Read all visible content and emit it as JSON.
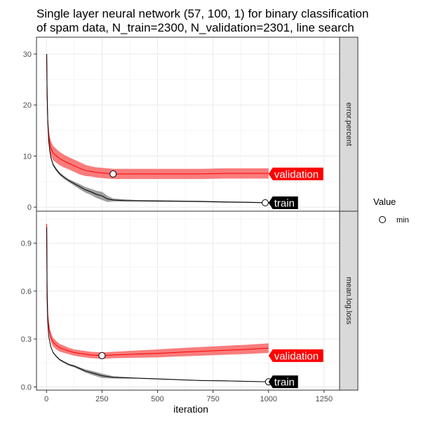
{
  "chart_data": {
    "type": "line",
    "title_lines": [
      "Single layer neural network (57, 100, 1) for binary classification",
      "of spam data, N_train=2300, N_validation=2301, line search"
    ],
    "xlabel": "iteration",
    "xlim": [
      -45,
      1320
    ],
    "x_ticks": [
      0,
      250,
      500,
      750,
      1000,
      1250
    ],
    "legend": {
      "title": "Value",
      "entries": [
        {
          "label": "min",
          "shape": "open-circle"
        }
      ],
      "placement": "right"
    },
    "colors": {
      "validation": "#ff0000",
      "validation_band": "#f87575",
      "train": "#000000",
      "train_band": "#8c8c8c",
      "panel_border": "#333333",
      "grid_major": "#ebebeb",
      "grid_minor": "#f5f5f5",
      "strip_fill": "#d9d9d9"
    },
    "facets": [
      {
        "strip_label": "error.percent",
        "ylim": [
          -0.8,
          33.3
        ],
        "y_ticks": [
          0,
          10,
          20,
          30
        ],
        "y_tick_labels": [
          "0",
          "10",
          "20",
          "30"
        ],
        "series": [
          {
            "name": "validation",
            "points": [
              [
                1,
                30
              ],
              [
                3,
                22
              ],
              [
                6,
                17
              ],
              [
                10,
                14
              ],
              [
                15,
                12.5
              ],
              [
                20,
                11.5
              ],
              [
                30,
                10.6
              ],
              [
                45,
                10
              ],
              [
                60,
                9.5
              ],
              [
                80,
                9
              ],
              [
                100,
                8.6
              ],
              [
                125,
                8.1
              ],
              [
                150,
                7.6
              ],
              [
                175,
                7.2
              ],
              [
                200,
                7
              ],
              [
                225,
                6.8
              ],
              [
                250,
                6.7
              ],
              [
                275,
                6.6
              ],
              [
                300,
                6.5
              ],
              [
                350,
                6.5
              ],
              [
                400,
                6.5
              ],
              [
                500,
                6.5
              ],
              [
                600,
                6.5
              ],
              [
                700,
                6.5
              ],
              [
                800,
                6.6
              ],
              [
                900,
                6.6
              ],
              [
                1000,
                6.6
              ]
            ],
            "band": [
              [
                1,
                0.5
              ],
              [
                10,
                1.4
              ],
              [
                30,
                1.4
              ],
              [
                60,
                1.3
              ],
              [
                100,
                1.2
              ],
              [
                150,
                1.2
              ],
              [
                200,
                1
              ],
              [
                250,
                1
              ],
              [
                300,
                1
              ],
              [
                400,
                1
              ],
              [
                600,
                1
              ],
              [
                800,
                1
              ],
              [
                1000,
                1
              ]
            ],
            "min": {
              "x": 300,
              "y": 6.5
            },
            "label": "validation"
          },
          {
            "name": "train",
            "points": [
              [
                1,
                30
              ],
              [
                3,
                22
              ],
              [
                6,
                16.5
              ],
              [
                10,
                13
              ],
              [
                15,
                11
              ],
              [
                20,
                9.7
              ],
              [
                30,
                8.3
              ],
              [
                45,
                7.3
              ],
              [
                60,
                6.5
              ],
              [
                80,
                5.8
              ],
              [
                100,
                5.2
              ],
              [
                125,
                4.6
              ],
              [
                150,
                4
              ],
              [
                175,
                3.4
              ],
              [
                200,
                3
              ],
              [
                225,
                2.5
              ],
              [
                250,
                2.2
              ],
              [
                275,
                1.6
              ],
              [
                300,
                1.4
              ],
              [
                350,
                1.3
              ],
              [
                400,
                1.25
              ],
              [
                500,
                1.2
              ],
              [
                600,
                1.15
              ],
              [
                700,
                1.1
              ],
              [
                800,
                1
              ],
              [
                900,
                0.95
              ],
              [
                1000,
                0.85
              ]
            ],
            "band": [
              [
                1,
                0.3
              ],
              [
                100,
                0.3
              ],
              [
                150,
                0.5
              ],
              [
                200,
                0.6
              ],
              [
                250,
                0.8
              ],
              [
                275,
                0.6
              ],
              [
                300,
                0.3
              ],
              [
                400,
                0.15
              ],
              [
                1000,
                0.1
              ]
            ],
            "min": {
              "x": 985,
              "y": 0.85
            },
            "label": "train"
          }
        ]
      },
      {
        "strip_label": "mean.log.loss",
        "ylim": [
          -0.02,
          1.1
        ],
        "y_ticks": [
          0,
          0.3,
          0.6,
          0.9
        ],
        "y_tick_labels": [
          "0.0",
          "0.3",
          "0.6",
          "0.9"
        ],
        "series": [
          {
            "name": "validation",
            "points": [
              [
                1,
                1.02
              ],
              [
                3,
                0.6
              ],
              [
                6,
                0.45
              ],
              [
                10,
                0.38
              ],
              [
                15,
                0.34
              ],
              [
                20,
                0.31
              ],
              [
                30,
                0.28
              ],
              [
                45,
                0.26
              ],
              [
                60,
                0.245
              ],
              [
                80,
                0.235
              ],
              [
                100,
                0.225
              ],
              [
                125,
                0.215
              ],
              [
                150,
                0.21
              ],
              [
                175,
                0.205
              ],
              [
                200,
                0.2
              ],
              [
                225,
                0.198
              ],
              [
                250,
                0.196
              ],
              [
                300,
                0.2
              ],
              [
                400,
                0.205
              ],
              [
                500,
                0.21
              ],
              [
                600,
                0.217
              ],
              [
                700,
                0.223
              ],
              [
                800,
                0.229
              ],
              [
                900,
                0.235
              ],
              [
                1000,
                0.243
              ]
            ],
            "band": [
              [
                1,
                0.01
              ],
              [
                10,
                0.03
              ],
              [
                50,
                0.025
              ],
              [
                100,
                0.02
              ],
              [
                200,
                0.02
              ],
              [
                300,
                0.02
              ],
              [
                500,
                0.025
              ],
              [
                700,
                0.027
              ],
              [
                1000,
                0.03
              ]
            ],
            "min": {
              "x": 250,
              "y": 0.196
            },
            "label": "validation"
          },
          {
            "name": "train",
            "points": [
              [
                1,
                1.0
              ],
              [
                3,
                0.55
              ],
              [
                6,
                0.4
              ],
              [
                10,
                0.32
              ],
              [
                15,
                0.28
              ],
              [
                20,
                0.25
              ],
              [
                30,
                0.215
              ],
              [
                45,
                0.19
              ],
              [
                60,
                0.17
              ],
              [
                80,
                0.155
              ],
              [
                100,
                0.14
              ],
              [
                125,
                0.13
              ],
              [
                150,
                0.115
              ],
              [
                175,
                0.1
              ],
              [
                200,
                0.09
              ],
              [
                225,
                0.08
              ],
              [
                250,
                0.07
              ],
              [
                275,
                0.065
              ],
              [
                300,
                0.06
              ],
              [
                400,
                0.055
              ],
              [
                500,
                0.05
              ],
              [
                600,
                0.045
              ],
              [
                700,
                0.04
              ],
              [
                800,
                0.038
              ],
              [
                900,
                0.035
              ],
              [
                1000,
                0.032
              ]
            ],
            "band": [
              [
                1,
                0.005
              ],
              [
                100,
                0.006
              ],
              [
                150,
                0.008
              ],
              [
                200,
                0.012
              ],
              [
                250,
                0.014
              ],
              [
                280,
                0.01
              ],
              [
                320,
                0.005
              ],
              [
                400,
                0.003
              ],
              [
                1000,
                0.002
              ]
            ],
            "min": {
              "x": 1000,
              "y": 0.032
            },
            "label": "train"
          }
        ]
      }
    ]
  }
}
